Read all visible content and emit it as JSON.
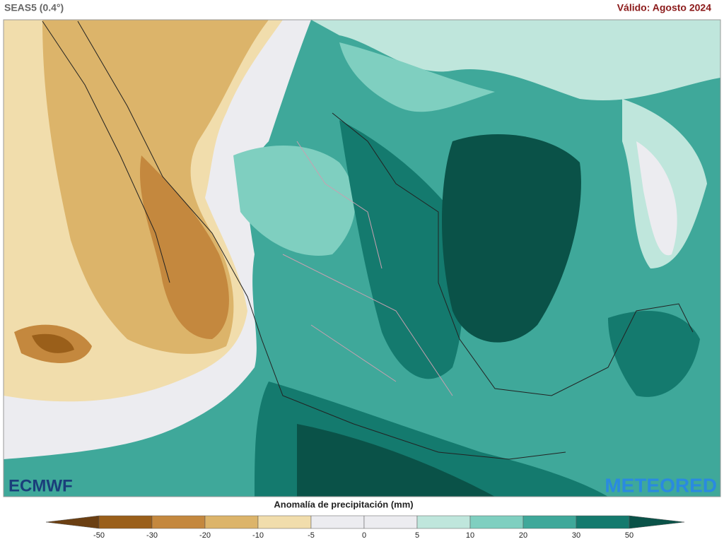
{
  "header": {
    "title": "SEAS5 (0.4°)",
    "valid": "Válido: Agosto 2024"
  },
  "logos": {
    "left": "ECMWF",
    "right": "METEORED"
  },
  "colorbar": {
    "title": "Anomalía de precipitación (mm)",
    "ticks": [
      -50,
      -30,
      -20,
      -10,
      -5,
      0,
      5,
      10,
      20,
      30,
      50
    ],
    "colors": [
      "#6b3f12",
      "#9a5f1a",
      "#c4883e",
      "#dcb46a",
      "#f1ddac",
      "#ececf0",
      "#ececf0",
      "#bfe6dc",
      "#7fcfc0",
      "#3fa89a",
      "#147a6e",
      "#0a5248"
    ]
  }
}
